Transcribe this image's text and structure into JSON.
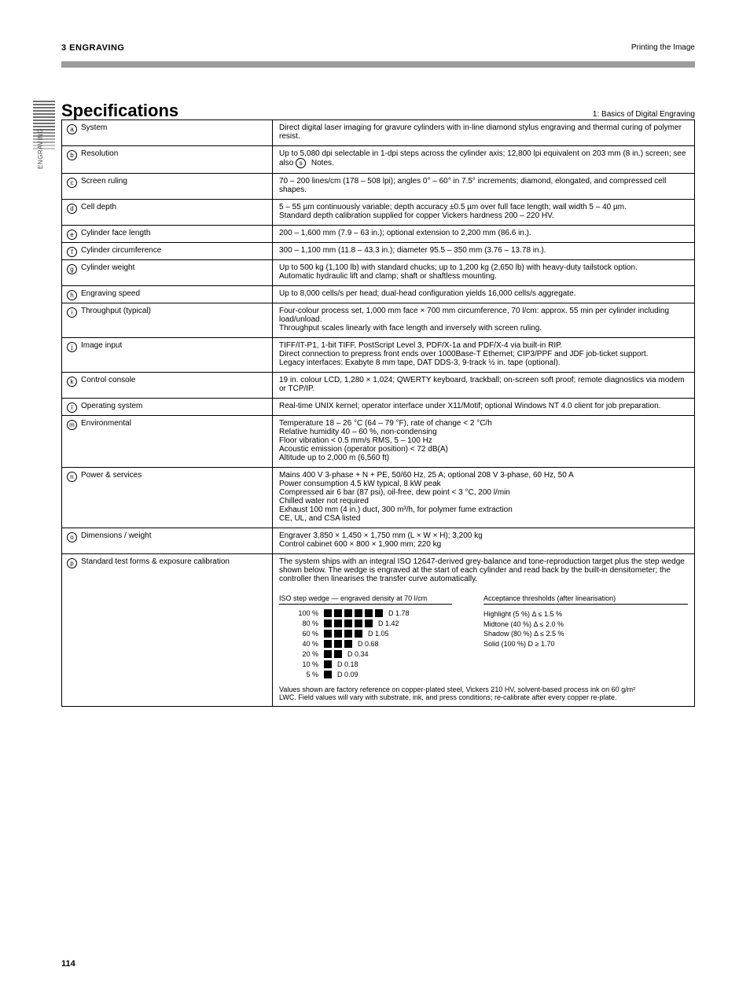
{
  "header": {
    "left": "3  ENGRAVING",
    "right": "Printing the Image"
  },
  "side_tab_label": "ENGRAVING",
  "title": {
    "left": "Specifications",
    "right": "1: Basics of Digital Engraving"
  },
  "rows": [
    {
      "id": "a",
      "label": "System",
      "value": "Direct digital laser imaging for gravure cylinders with in-line diamond stylus engraving and thermal curing of polymer resist."
    },
    {
      "id": "b",
      "label": "Resolution",
      "value": "Up to 5,080 dpi selectable in 1-dpi steps across the cylinder axis; 12,800 lpi equivalent on 203 mm (8 in.) screen; see also [s] Notes.",
      "ref": "s"
    },
    {
      "id": "c",
      "label": "Screen ruling",
      "value": "70 – 200 lines/cm (178 – 508 lpi); angles 0° – 60° in 7.5° increments; diamond, elongated, and compressed cell shapes."
    },
    {
      "id": "d",
      "label": "Cell depth",
      "value": "5 – 55 µm continuously variable; depth accuracy ±0.5 µm over full face length; wall width 5 – 40 µm.\nStandard depth calibration supplied for copper Vickers hardness 200 – 220 HV."
    },
    {
      "id": "e",
      "label": "Cylinder face length",
      "value": "200 – 1,600 mm (7.9 – 63 in.); optional extension to 2,200 mm (86.6 in.)."
    },
    {
      "id": "f",
      "label": "Cylinder circumference",
      "value": "300 – 1,100 mm (11.8 – 43.3 in.); diameter 95.5 – 350 mm (3.76 – 13.78 in.)."
    },
    {
      "id": "g",
      "label": "Cylinder weight",
      "value": "Up to 500 kg (1,100 lb) with standard chucks; up to 1,200 kg (2,650 lb) with heavy-duty tailstock option.\nAutomatic hydraulic lift and clamp; shaft or shaftless mounting."
    },
    {
      "id": "h",
      "label": "Engraving speed",
      "value": "Up to 8,000 cells/s per head; dual-head configuration yields 16,000 cells/s aggregate."
    },
    {
      "id": "i",
      "label": "Throughput (typical)",
      "value": "Four-colour process set, 1,000 mm face × 700 mm circumference, 70 l/cm: approx. 55 min per cylinder including load/unload.\nThroughput scales linearly with face length and inversely with screen ruling."
    },
    {
      "id": "j",
      "label": "Image input",
      "value": "TIFF/IT-P1, 1-bit TIFF, PostScript Level 3, PDF/X-1a and PDF/X-4 via built-in RIP.\nDirect connection to prepress front ends over 1000Base-T Ethernet; CIP3/PPF and JDF job-ticket support.\nLegacy interfaces: Exabyte 8 mm tape, DAT DDS-3, 9-track ½ in. tape (optional)."
    },
    {
      "id": "k",
      "label": "Control console",
      "value": "19 in. colour LCD, 1,280 × 1,024; QWERTY keyboard, trackball; on-screen soft proof; remote diagnostics via modem or TCP/IP."
    },
    {
      "id": "l",
      "label": "Operating system",
      "value": "Real-time UNIX kernel; operator interface under X11/Motif; optional Windows NT 4.0 client for job preparation."
    },
    {
      "id": "m",
      "label": "Environmental",
      "value": "Temperature   18 – 26 °C (64 – 79 °F), rate of change < 2 °C/h\nRelative humidity   40 – 60 %, non-condensing\nFloor vibration   < 0.5 mm/s RMS, 5 – 100 Hz\nAcoustic emission (operator position)   < 72 dB(A)\nAltitude   up to 2,000 m (6,560 ft)"
    },
    {
      "id": "n",
      "label": "Power & services",
      "value": "Mains   400 V 3-phase + N + PE, 50/60 Hz, 25 A; optional 208 V 3-phase, 60 Hz, 50 A\nPower consumption   4.5 kW typical, 8 kW peak\nCompressed air   6 bar (87 psi), oil-free, dew point < 3 °C, 200 l/min\nChilled water   not required\nExhaust   100 mm (4 in.) duct, 300 m³/h, for polymer fume extraction\nCE, UL, and CSA listed"
    },
    {
      "id": "o",
      "label": "Dimensions / weight",
      "value": "Engraver   3,850 × 1,450 × 1,750 mm (L × W × H); 3,200 kg\nControl cabinet   600 × 800 × 1,900 mm; 220 kg"
    },
    {
      "id": "p",
      "label": "Standard test forms & exposure calibration",
      "value": "The system ships with an integral ISO 12647-derived grey-balance and tone-reproduction target plus the step wedge shown below. The wedge is engraved at the start of each cylinder and read back by the built-in densitometer; the controller then linearises the transfer curve automatically.",
      "iso_label": "ISO step wedge — engraved density at 70 l/cm",
      "threshold_label": "Acceptance thresholds (after linearisation)",
      "threshold_lines": [
        "Highlight (5 %)  Δ ≤ 1.5 %",
        "Midtone (40 %)  Δ ≤ 2.0 %",
        "Shadow (80 %)  Δ ≤ 2.5 %",
        "Solid (100 %)  D ≥ 1.70"
      ],
      "pyramid": [
        {
          "pre": "100 %",
          "n": 6,
          "post": "D 1.78"
        },
        {
          "pre": "80 %",
          "n": 5,
          "post": "D 1.42"
        },
        {
          "pre": "60 %",
          "n": 4,
          "post": "D 1.05"
        },
        {
          "pre": "40 %",
          "n": 3,
          "post": "D 0.68"
        },
        {
          "pre": "20 %",
          "n": 2,
          "post": "D 0.34"
        },
        {
          "pre": "10 %",
          "n": 1,
          "post": "D 0.18"
        },
        {
          "pre": "5 %",
          "n": 1,
          "post": "D 0.09"
        }
      ],
      "iso_note": "Values shown are factory reference on copper-plated steel, Vickers 210 HV, solvent-based process ink on 60 g/m² LWC. Field values will vary with substrate, ink, and press conditions; re-calibrate after every copper re-plate."
    }
  ],
  "page_number": "114",
  "colors": {
    "rule": "#9c9c9c",
    "text": "#000000",
    "bg": "#ffffff"
  }
}
